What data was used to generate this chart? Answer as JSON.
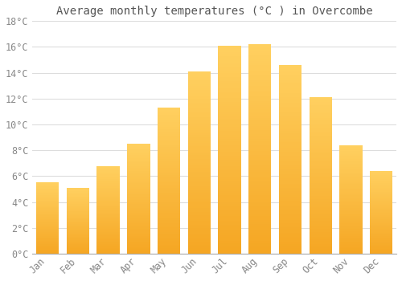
{
  "title": "Average monthly temperatures (°C ) in Overcombe",
  "months": [
    "Jan",
    "Feb",
    "Mar",
    "Apr",
    "May",
    "Jun",
    "Jul",
    "Aug",
    "Sep",
    "Oct",
    "Nov",
    "Dec"
  ],
  "values": [
    5.5,
    5.1,
    6.8,
    8.5,
    11.3,
    14.1,
    16.1,
    16.2,
    14.6,
    12.1,
    8.4,
    6.4
  ],
  "bar_color_bottom": "#F5A623",
  "bar_color_top": "#FFD060",
  "background_color": "#FFFFFF",
  "plot_bg_color": "#FFFFFF",
  "grid_color": "#DDDDDD",
  "text_color": "#888888",
  "title_color": "#555555",
  "ylim": [
    0,
    18
  ],
  "ytick_step": 2,
  "title_fontsize": 10,
  "tick_fontsize": 8.5
}
